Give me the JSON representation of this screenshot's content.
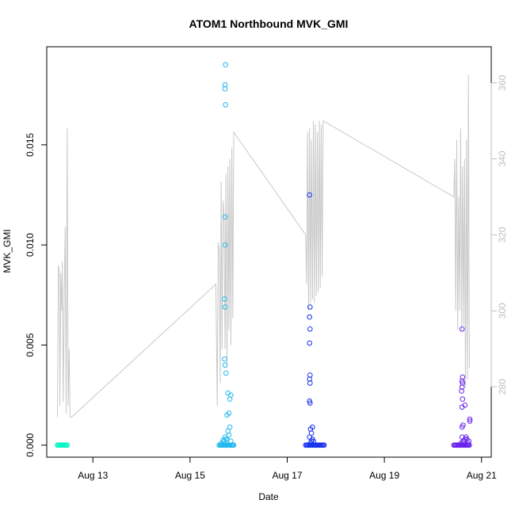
{
  "chart_data": {
    "type": "scatter",
    "title": "ATOM1 Northbound MVK_GMI",
    "xlabel": "Date",
    "ylabel": "MVK_GMI",
    "ylabel_right": "",
    "x_ticks": [
      "Aug 13",
      "Aug 15",
      "Aug 17",
      "Aug 19",
      "Aug 21"
    ],
    "x_tick_values": [
      13,
      15,
      17,
      19,
      21
    ],
    "xlim": [
      12.05,
      21.2
    ],
    "y_ticks": [
      "0.000",
      "0.005",
      "0.010",
      "0.015"
    ],
    "y_tick_values": [
      0.0,
      0.005,
      0.01,
      0.015
    ],
    "ylim": [
      -0.0006,
      0.0199
    ],
    "y2_ticks": [
      "280",
      "300",
      "320",
      "340",
      "360"
    ],
    "y2_tick_values": [
      280,
      300,
      320,
      340,
      360
    ],
    "y2lim": [
      261.5,
      369.5
    ],
    "grid": false,
    "series": [
      {
        "color": "#00f5c0",
        "x": [
          12.27,
          12.29,
          12.31,
          12.33,
          12.35,
          12.37,
          12.39,
          12.41,
          12.43,
          12.45,
          12.47
        ],
        "y": [
          0,
          0,
          0,
          0,
          0,
          0,
          0,
          0,
          0,
          0,
          0
        ]
      },
      {
        "color": "#22b8ee",
        "x": [
          15.6,
          15.62,
          15.64,
          15.66,
          15.68,
          15.7,
          15.72,
          15.74,
          15.76,
          15.78,
          15.8,
          15.82,
          15.84,
          15.86,
          15.88,
          15.9,
          15.65,
          15.7,
          15.74,
          15.68,
          15.72,
          15.76,
          15.8,
          15.84,
          15.78,
          15.82,
          15.8,
          15.82,
          15.84,
          15.78,
          15.76,
          15.74,
          15.72,
          15.71,
          15.72,
          15.71,
          15.72,
          15.72,
          15.73,
          15.72,
          15.72,
          15.73
        ],
        "y": [
          0,
          0,
          0,
          0,
          0,
          0,
          0,
          0,
          0,
          0,
          0,
          0,
          0,
          0,
          0,
          0,
          0.0001,
          0.0002,
          0.0003,
          0.00025,
          0.0004,
          0.0003,
          0.0005,
          0.0002,
          0.0007,
          0.0009,
          0.0016,
          0.0023,
          0.0025,
          0.0026,
          0.0015,
          0.0036,
          0.004,
          0.0043,
          0.0069,
          0.0073,
          0.01,
          0.0114,
          0.017,
          0.0178,
          0.018,
          0.019
        ]
      },
      {
        "color": "#1833ee",
        "x": [
          17.38,
          17.4,
          17.42,
          17.44,
          17.46,
          17.48,
          17.5,
          17.52,
          17.54,
          17.56,
          17.58,
          17.6,
          17.62,
          17.64,
          17.66,
          17.68,
          17.7,
          17.72,
          17.74,
          17.76,
          17.48,
          17.5,
          17.52,
          17.46,
          17.54,
          17.5,
          17.48,
          17.52,
          17.47,
          17.46,
          17.47,
          17.46,
          17.47,
          17.46,
          17.47,
          17.46,
          17.47,
          17.46
        ],
        "y": [
          0,
          0,
          0,
          0,
          0,
          0,
          0,
          0,
          0,
          0,
          0,
          0,
          0,
          0,
          0,
          0,
          0,
          0,
          0,
          0,
          0.0001,
          0.0002,
          0.0003,
          0.0004,
          0.0002,
          0.0006,
          0.0008,
          0.0009,
          0.0021,
          0.0022,
          0.0031,
          0.0033,
          0.0035,
          0.0051,
          0.0058,
          0.0064,
          0.0069,
          0.0125
        ]
      },
      {
        "color": "#6a22ee",
        "x": [
          20.43,
          20.45,
          20.47,
          20.49,
          20.51,
          20.53,
          20.55,
          20.57,
          20.59,
          20.61,
          20.63,
          20.65,
          20.67,
          20.69,
          20.71,
          20.73,
          20.75,
          20.58,
          20.62,
          20.66,
          20.6,
          20.7,
          20.64,
          20.72,
          20.68,
          20.74,
          20.76,
          20.76,
          20.6,
          20.62,
          20.66,
          20.6,
          20.61,
          20.59,
          20.6,
          20.61,
          20.6,
          20.61,
          20.6
        ],
        "y": [
          0,
          0,
          0,
          0,
          0,
          0,
          0,
          0,
          0,
          0,
          0,
          0,
          0,
          0,
          0,
          0,
          0,
          0.0001,
          0.0002,
          0.0003,
          0.0004,
          0.0003,
          0.0002,
          0.0001,
          0.0004,
          0.0002,
          0.0012,
          0.0013,
          0.0009,
          0.001,
          0.002,
          0.0019,
          0.0023,
          0.0027,
          0.0029,
          0.0031,
          0.0032,
          0.0034,
          0.0058
        ]
      },
      {
        "color": "#c8c8c8",
        "axis": "right",
        "render": "line",
        "x": [
          12.27,
          12.29,
          12.31,
          12.32,
          12.34,
          12.36,
          12.37,
          12.39,
          12.41,
          12.43,
          12.45,
          12.47,
          12.49,
          12.51,
          12.53,
          12.56,
          15.53,
          15.56,
          15.58,
          15.6,
          15.62,
          15.64,
          15.66,
          15.68,
          15.7,
          15.72,
          15.74,
          15.76,
          15.78,
          15.8,
          15.82,
          15.84,
          15.86,
          15.88,
          15.9,
          17.38,
          17.4,
          17.42,
          17.44,
          17.46,
          17.48,
          17.5,
          17.52,
          17.54,
          17.56,
          17.58,
          17.6,
          17.62,
          17.64,
          17.66,
          17.68,
          17.7,
          17.72,
          17.74,
          20.43,
          20.45,
          20.47,
          20.49,
          20.51,
          20.53,
          20.55,
          20.57,
          20.59,
          20.61,
          20.63,
          20.65,
          20.67,
          20.69,
          20.71,
          20.73,
          20.75
        ],
        "y": [
          272,
          312,
          310,
          275,
          310,
          300,
          313,
          276,
          305,
          322,
          273,
          348,
          275,
          290,
          272,
          272,
          307,
          275,
          318,
          316,
          281,
          334,
          290,
          329,
          325,
          290,
          336,
          285,
          338,
          295,
          340,
          291,
          343,
          298,
          347,
          320,
          307,
          347,
          300,
          348,
          302,
          345,
          303,
          350,
          302,
          349,
          304,
          347,
          305,
          350,
          306,
          349,
          309,
          350,
          330,
          340,
          300,
          345,
          295,
          330,
          300,
          348,
          295,
          338,
          296,
          340,
          280,
          345,
          282,
          362,
          285
        ]
      }
    ]
  }
}
